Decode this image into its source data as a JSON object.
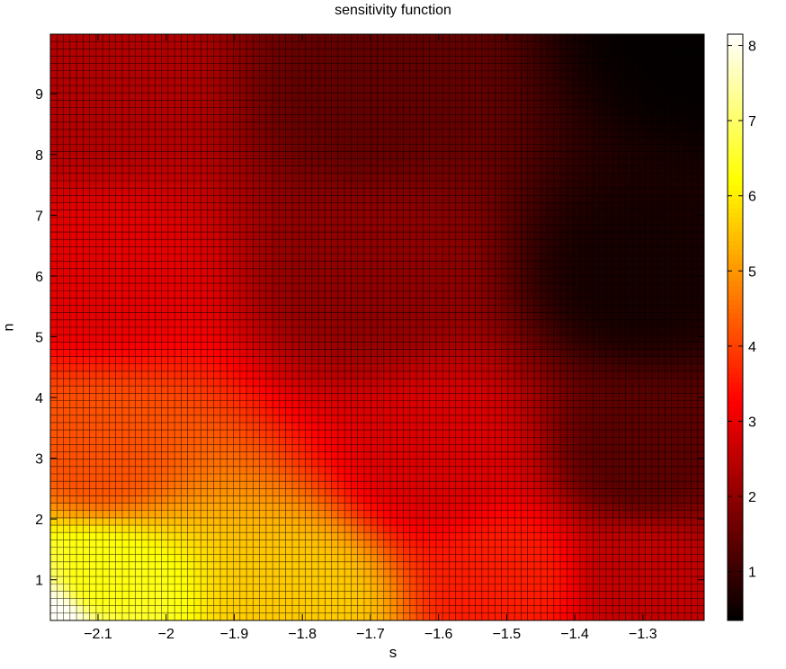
{
  "chart_data": {
    "type": "heatmap",
    "title": "sensitivity function",
    "xlabel": "s",
    "ylabel": "n",
    "xlim": [
      -2.17,
      -1.21
    ],
    "ylim": [
      0.33,
      9.98
    ],
    "xticks": [
      -2.1,
      -2.0,
      -1.9,
      -1.8,
      -1.7,
      -1.6,
      -1.5,
      -1.4,
      -1.3
    ],
    "xtick_labels": [
      "−2.1",
      "−2",
      "−1.9",
      "−1.8",
      "−1.7",
      "−1.6",
      "−1.5",
      "−1.4",
      "−1.3"
    ],
    "yticks": [
      1,
      2,
      3,
      4,
      5,
      6,
      7,
      8,
      9
    ],
    "ytick_labels": [
      "1",
      "2",
      "3",
      "4",
      "5",
      "6",
      "7",
      "8",
      "9"
    ],
    "colormap": "hot",
    "clim": [
      0.35,
      8.15
    ],
    "colorbar_ticks": [
      1,
      2,
      3,
      4,
      5,
      6,
      7,
      8
    ],
    "colorbar_tick_labels": [
      "1",
      "2",
      "3",
      "4",
      "5",
      "6",
      "7",
      "8"
    ],
    "grid_cells": {
      "nx": 100,
      "ny": 80
    },
    "value_samples": [
      {
        "s": -2.17,
        "n": 0.33,
        "value": 8.1
      },
      {
        "s": -2.1,
        "n": 1.0,
        "value": 6.3
      },
      {
        "s": -1.8,
        "n": 0.6,
        "value": 5.6
      },
      {
        "s": -1.5,
        "n": 1.0,
        "value": 3.6
      },
      {
        "s": -1.3,
        "n": 1.0,
        "value": 2.6
      },
      {
        "s": -2.1,
        "n": 3.0,
        "value": 4.2
      },
      {
        "s": -1.6,
        "n": 3.0,
        "value": 2.9
      },
      {
        "s": -1.3,
        "n": 3.0,
        "value": 1.4
      },
      {
        "s": -2.1,
        "n": 6.0,
        "value": 3.0
      },
      {
        "s": -1.7,
        "n": 6.0,
        "value": 2.0
      },
      {
        "s": -1.3,
        "n": 6.0,
        "value": 0.6
      },
      {
        "s": -2.1,
        "n": 9.0,
        "value": 2.4
      },
      {
        "s": -1.7,
        "n": 9.0,
        "value": 1.5
      },
      {
        "s": -1.21,
        "n": 9.98,
        "value": 0.4
      }
    ]
  }
}
